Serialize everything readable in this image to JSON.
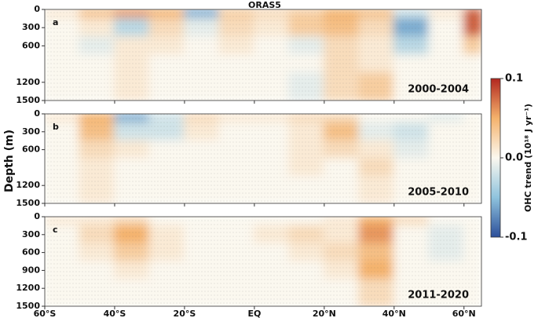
{
  "chart_data": {
    "type": "heatmap",
    "title": "ORAS5",
    "ylabel": "Depth (m)",
    "xlim": [
      -60,
      65
    ],
    "ylim": [
      1500,
      0
    ],
    "xticks": [
      {
        "value": -60,
        "label": "60°S"
      },
      {
        "value": -40,
        "label": "40°S"
      },
      {
        "value": -20,
        "label": "20°S"
      },
      {
        "value": 0,
        "label": "EQ"
      },
      {
        "value": 20,
        "label": "20°N"
      },
      {
        "value": 40,
        "label": "40°N"
      },
      {
        "value": 60,
        "label": "60°N"
      }
    ],
    "xbins": [
      -60,
      -50,
      -40,
      -30,
      -20,
      -10,
      0,
      10,
      20,
      30,
      40,
      50,
      60,
      65
    ],
    "ybins": [
      0,
      150,
      450,
      750,
      1050,
      1500
    ],
    "clim": [
      -0.1,
      0.1
    ],
    "cticks": [
      0.1,
      {
        "value": 0,
        "label": "0.0"
      },
      -0.1
    ],
    "clabel": "OHC trend (10¹⁸ J yr⁻¹)",
    "colormap": [
      "#2c4f9a",
      "#8fc3dd",
      "#fbf8ef",
      "#f4b26c",
      "#b2271f"
    ],
    "panels": [
      {
        "label": "a",
        "period": "2000-2004",
        "yticks": [
          0,
          300,
          600,
          1200,
          1500
        ],
        "values": [
          [
            0.01,
            0.04,
            0.06,
            0.05,
            -0.06,
            0.03,
            0.02,
            0.03,
            0.05,
            0.04,
            -0.02,
            0.01,
            0.08
          ],
          [
            0,
            0.01,
            -0.03,
            0.02,
            -0.01,
            0.02,
            0.01,
            0.03,
            0.04,
            0.02,
            -0.06,
            0,
            0.08
          ],
          [
            0,
            -0.01,
            0.01,
            0.01,
            0,
            0.01,
            0,
            -0.01,
            0.02,
            0.01,
            -0.03,
            0,
            0.03
          ],
          [
            0,
            0,
            0.01,
            0,
            0,
            0,
            0,
            0,
            0.02,
            0.01,
            0,
            0,
            0
          ],
          [
            0,
            0,
            0.01,
            0,
            0,
            0,
            0,
            -0.01,
            0.02,
            0.03,
            0,
            0,
            0
          ]
        ]
      },
      {
        "label": "b",
        "period": "2005-2010",
        "yticks": [
          0,
          300,
          600,
          1200,
          1500
        ],
        "values": [
          [
            0.01,
            0.05,
            -0.06,
            -0.02,
            0.02,
            0.01,
            0.01,
            0.02,
            0.02,
            0,
            0,
            -0.01,
            0
          ],
          [
            0,
            0.04,
            -0.02,
            -0.02,
            0.01,
            0,
            0,
            0.01,
            0.04,
            -0.01,
            -0.02,
            0,
            0
          ],
          [
            0,
            0.02,
            0.01,
            0,
            0,
            0,
            0,
            0.01,
            0.02,
            0.01,
            -0.01,
            0,
            0
          ],
          [
            0,
            0.01,
            0,
            0,
            0,
            0,
            0,
            0.01,
            0,
            0.02,
            0,
            0,
            0
          ],
          [
            0,
            0.01,
            0,
            0,
            0,
            0,
            0,
            0,
            0,
            0.01,
            0,
            0,
            0
          ]
        ]
      },
      {
        "label": "c",
        "period": "2011-2020",
        "yticks": [
          0,
          300,
          600,
          900,
          1200,
          1500
        ],
        "values": [
          [
            0.01,
            0.01,
            0.02,
            0,
            0,
            0,
            0,
            0,
            0.01,
            0.05,
            0.02,
            0,
            0
          ],
          [
            0,
            0.02,
            0.05,
            0.01,
            0,
            0,
            0.01,
            0.02,
            0.01,
            0.06,
            0,
            -0.01,
            0
          ],
          [
            0,
            0.01,
            0.03,
            0.01,
            0,
            0,
            0,
            0.01,
            0.02,
            0.04,
            0,
            -0.01,
            0
          ],
          [
            0,
            0,
            0.01,
            0,
            0,
            0,
            0,
            0,
            0.01,
            0.05,
            0,
            0,
            0
          ],
          [
            0,
            0,
            0,
            0,
            0,
            0,
            0,
            0,
            0,
            0.02,
            0,
            0,
            0
          ]
        ]
      }
    ]
  }
}
